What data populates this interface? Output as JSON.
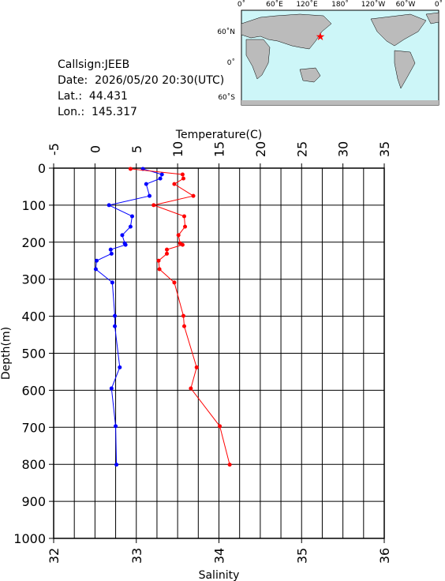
{
  "info": {
    "lines": [
      "Callsign:JEEB",
      "Date:  2026/05/20 20:30(UTC)",
      "Lat.:  44.431",
      "Lon.:  145.317"
    ]
  },
  "map": {
    "lon_labels": [
      "0˚",
      "60˚E",
      "120˚E",
      "180˚",
      "120˚W",
      "60˚W",
      "0˚"
    ],
    "lat_labels": [
      "60˚N",
      "0˚",
      "60˚S"
    ]
  },
  "chart_data": {
    "type": "profile",
    "x2_label": "Temperature(C)",
    "xlabel": "Salinity",
    "ylabel": "Depth(m)",
    "xlim": [
      32,
      36
    ],
    "xticks": [
      32,
      33,
      34,
      35,
      36
    ],
    "x2lim": [
      -5,
      35
    ],
    "x2ticks": [
      -5,
      0,
      5,
      10,
      15,
      20,
      25,
      30,
      35
    ],
    "x2grid": [
      -5,
      -2.5,
      0,
      2.5,
      5,
      7.5,
      10,
      12.5,
      15,
      17.5,
      20,
      22.5,
      25,
      27.5,
      30,
      32.5,
      35
    ],
    "ylim": [
      0,
      1000
    ],
    "y_inverted": true,
    "yticks": [
      0,
      100,
      200,
      300,
      400,
      500,
      600,
      700,
      800,
      900,
      1000
    ],
    "grid": true,
    "y": [
      2,
      17,
      28,
      43,
      75,
      100,
      130,
      158,
      181,
      203,
      207,
      220,
      231,
      250,
      273,
      309,
      399,
      427,
      538,
      595,
      697,
      801
    ],
    "series": [
      {
        "name": "Temperature",
        "color": "#0000ff",
        "axis": "x2",
        "values": [
          5.8,
          8.1,
          7.9,
          6.2,
          6.6,
          1.7,
          4.5,
          4.3,
          3.3,
          3.6,
          3.7,
          1.9,
          2.0,
          0.2,
          0.1,
          2.1,
          2.4,
          2.4,
          3.0,
          2.0,
          2.5,
          2.6
        ]
      },
      {
        "name": "Salinity",
        "color": "#ff0000",
        "axis": "x",
        "values": [
          32.93,
          33.56,
          33.57,
          33.46,
          33.69,
          33.21,
          33.58,
          33.59,
          33.51,
          33.53,
          33.56,
          33.37,
          33.37,
          33.27,
          33.28,
          33.46,
          33.57,
          33.58,
          33.73,
          33.66,
          34.01,
          34.13
        ]
      }
    ]
  }
}
